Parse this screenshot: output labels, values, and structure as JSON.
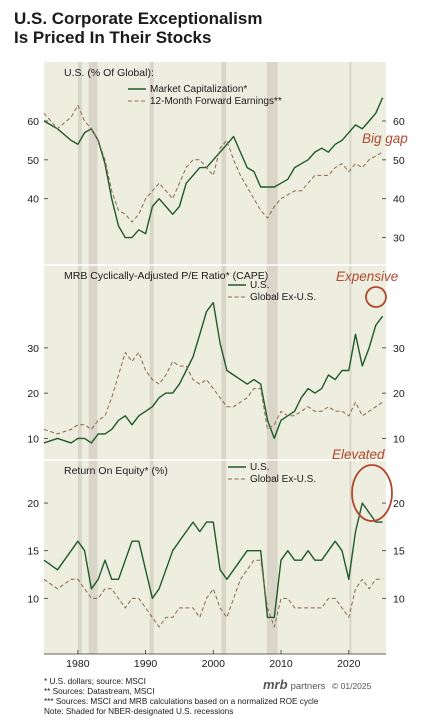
{
  "header": {
    "title_line1": "U.S. Corporate Exceptionalism",
    "title_line2": "Is Priced In Their Stocks"
  },
  "colors": {
    "background": "#eeeee0",
    "green": "#1f5a2a",
    "brown": "#8a6a4a",
    "recession": "#d9d5c9",
    "annotation": "#b0482e",
    "title": "#1a1a1a"
  },
  "x_axis": {
    "ticks": [
      "1980",
      "1990",
      "2000",
      "2010",
      "2020"
    ],
    "range": [
      1975,
      2025.5
    ]
  },
  "recessions": [
    [
      1980.0,
      1980.6
    ],
    [
      1981.6,
      1982.9
    ],
    [
      1990.6,
      1991.2
    ],
    [
      2001.2,
      2001.9
    ],
    [
      2007.9,
      2009.5
    ],
    [
      2020.1,
      2020.4
    ]
  ],
  "chart_data": [
    {
      "type": "line",
      "title": "U.S. (% Of Global):",
      "ylim_left": [
        25,
        69
      ],
      "ylim_right": [
        25,
        69
      ],
      "yticks_left": [
        40,
        50,
        60
      ],
      "yticks_right": [
        30,
        40,
        50,
        60
      ],
      "legend": [
        "Market Capitalization*",
        "12-Month Forward Earnings**"
      ],
      "annotation": "Big gap",
      "series": [
        {
          "name": "Market Capitalization*",
          "style": "solid",
          "x": [
            1975,
            1977,
            1979,
            1980,
            1981,
            1982,
            1983,
            1984,
            1985,
            1986,
            1987,
            1988,
            1989,
            1990,
            1991,
            1992,
            1993,
            1994,
            1995,
            1996,
            1997,
            1998,
            1999,
            2000,
            2001,
            2002,
            2003,
            2004,
            2005,
            2006,
            2007,
            2008,
            2009,
            2010,
            2011,
            2012,
            2013,
            2014,
            2015,
            2016,
            2017,
            2018,
            2019,
            2020,
            2021,
            2022,
            2023,
            2024,
            2025
          ],
          "values": [
            60,
            58,
            55,
            54,
            57,
            58,
            55,
            49,
            40,
            33,
            30,
            30,
            32,
            31,
            38,
            40,
            38,
            36,
            38,
            44,
            46,
            48,
            48,
            50,
            52,
            54,
            56,
            52,
            48,
            47,
            43,
            43,
            43,
            44,
            45,
            48,
            49,
            50,
            52,
            53,
            52,
            54,
            55,
            57,
            59,
            58,
            60,
            62,
            66
          ]
        },
        {
          "name": "12-Month Forward Earnings**",
          "style": "dashed",
          "x": [
            1975,
            1977,
            1979,
            1980,
            1981,
            1982,
            1983,
            1984,
            1985,
            1986,
            1987,
            1988,
            1989,
            1990,
            1991,
            1992,
            1993,
            1994,
            1995,
            1996,
            1997,
            1998,
            1999,
            2000,
            2001,
            2002,
            2003,
            2004,
            2005,
            2006,
            2007,
            2008,
            2009,
            2010,
            2011,
            2012,
            2013,
            2014,
            2015,
            2016,
            2017,
            2018,
            2019,
            2020,
            2021,
            2022,
            2023,
            2024,
            2025
          ],
          "values": [
            62,
            58,
            61,
            64,
            60,
            58,
            55,
            50,
            42,
            37,
            36,
            34,
            36,
            40,
            42,
            44,
            42,
            40,
            44,
            48,
            50,
            50,
            48,
            46,
            53,
            55,
            50,
            46,
            43,
            40,
            37,
            35,
            38,
            40,
            41,
            42,
            42,
            44,
            46,
            46,
            46,
            48,
            49,
            47,
            49,
            48,
            50,
            51,
            52
          ]
        }
      ]
    },
    {
      "type": "line",
      "title": "MRB Cyclically-Adjusted P/E Ratio* (CAPE)",
      "ylim_left": [
        7,
        43
      ],
      "ylim_right": [
        7,
        43
      ],
      "yticks_left": [
        10,
        20,
        30
      ],
      "yticks_right": [
        10,
        20,
        30
      ],
      "legend": [
        "U.S.",
        "Global Ex-U.S."
      ],
      "annotation": "Expensive",
      "series": [
        {
          "name": "U.S.",
          "style": "solid",
          "x": [
            1975,
            1977,
            1979,
            1980,
            1981,
            1982,
            1983,
            1984,
            1985,
            1986,
            1987,
            1988,
            1989,
            1990,
            1991,
            1992,
            1993,
            1994,
            1995,
            1996,
            1997,
            1998,
            1999,
            2000,
            2001,
            2002,
            2003,
            2004,
            2005,
            2006,
            2007,
            2008,
            2009,
            2010,
            2011,
            2012,
            2013,
            2014,
            2015,
            2016,
            2017,
            2018,
            2019,
            2020,
            2021,
            2022,
            2023,
            2024,
            2025
          ],
          "values": [
            9,
            10,
            9,
            10,
            10,
            9,
            11,
            11,
            12,
            14,
            15,
            13,
            15,
            16,
            17,
            19,
            20,
            20,
            22,
            25,
            28,
            33,
            38,
            40,
            31,
            25,
            24,
            23,
            22,
            23,
            22,
            14,
            10,
            14,
            15,
            16,
            19,
            21,
            20,
            21,
            24,
            23,
            25,
            25,
            33,
            26,
            30,
            35,
            37
          ]
        },
        {
          "name": "Global Ex-U.S.",
          "style": "dashed",
          "x": [
            1975,
            1977,
            1979,
            1980,
            1981,
            1982,
            1983,
            1984,
            1985,
            1986,
            1987,
            1988,
            1989,
            1990,
            1991,
            1992,
            1993,
            1994,
            1995,
            1996,
            1997,
            1998,
            1999,
            2000,
            2001,
            2002,
            2003,
            2004,
            2005,
            2006,
            2007,
            2008,
            2009,
            2010,
            2011,
            2012,
            2013,
            2014,
            2015,
            2016,
            2017,
            2018,
            2019,
            2020,
            2021,
            2022,
            2023,
            2024,
            2025
          ],
          "values": [
            12,
            11,
            12,
            13,
            13,
            12,
            14,
            15,
            19,
            24,
            29,
            27,
            29,
            25,
            23,
            22,
            24,
            27,
            26,
            26,
            23,
            22,
            23,
            21,
            19,
            17,
            17,
            18,
            19,
            21,
            21,
            12,
            13,
            16,
            15,
            15,
            16,
            17,
            16,
            16,
            17,
            16,
            16,
            15,
            18,
            15,
            16,
            17,
            18
          ]
        }
      ]
    },
    {
      "type": "line",
      "title": "Return On Equity* (%)",
      "ylim_left": [
        5,
        22
      ],
      "ylim_right": [
        5,
        22
      ],
      "yticks_left": [
        10,
        15,
        20
      ],
      "yticks_right": [
        10,
        15,
        20
      ],
      "legend": [
        "U.S.",
        "Global Ex-U.S."
      ],
      "annotation": "Elevated",
      "series": [
        {
          "name": "U.S.",
          "style": "solid",
          "x": [
            1975,
            1977,
            1979,
            1980,
            1981,
            1982,
            1983,
            1984,
            1985,
            1986,
            1987,
            1988,
            1989,
            1990,
            1991,
            1992,
            1993,
            1994,
            1995,
            1996,
            1997,
            1998,
            1999,
            2000,
            2001,
            2002,
            2003,
            2004,
            2005,
            2006,
            2007,
            2008,
            2009,
            2010,
            2011,
            2012,
            2013,
            2014,
            2015,
            2016,
            2017,
            2018,
            2019,
            2020,
            2021,
            2022,
            2023,
            2024,
            2025
          ],
          "values": [
            14,
            13,
            15,
            16,
            15,
            11,
            12,
            14,
            12,
            12,
            14,
            16,
            16,
            13,
            10,
            11,
            13,
            15,
            16,
            17,
            18,
            17,
            18,
            18,
            13,
            12,
            13,
            14,
            15,
            15,
            15,
            8,
            8,
            14,
            15,
            14,
            14,
            15,
            14,
            14,
            15,
            16,
            15,
            12,
            17,
            20,
            19,
            18,
            18
          ]
        },
        {
          "name": "Global Ex-U.S.",
          "style": "dashed",
          "x": [
            1975,
            1977,
            1979,
            1980,
            1981,
            1982,
            1983,
            1984,
            1985,
            1986,
            1987,
            1988,
            1989,
            1990,
            1991,
            1992,
            1993,
            1994,
            1995,
            1996,
            1997,
            1998,
            1999,
            2000,
            2001,
            2002,
            2003,
            2004,
            2005,
            2006,
            2007,
            2008,
            2009,
            2010,
            2011,
            2012,
            2013,
            2014,
            2015,
            2016,
            2017,
            2018,
            2019,
            2020,
            2021,
            2022,
            2023,
            2024,
            2025
          ],
          "values": [
            12,
            11,
            12,
            12,
            11,
            10,
            10,
            11,
            11,
            10,
            9,
            10,
            10,
            9,
            8,
            7,
            8,
            8,
            9,
            9,
            9,
            8,
            10,
            11,
            9,
            8,
            10,
            12,
            13,
            14,
            14,
            9,
            7,
            10,
            10,
            9,
            9,
            9,
            9,
            9,
            10,
            10,
            9,
            8,
            11,
            12,
            11,
            12,
            12
          ]
        }
      ]
    }
  ],
  "footer": {
    "notes": [
      "*   U.S. dollars; source: MSCI",
      "**  Sources: Datastream, MSCI",
      "*** Sources: MSCI and MRB calculations based on a normalized ROE cycle",
      "Note: Shaded for NBER-designated U.S. recessions"
    ],
    "brand": "mrb",
    "brand_suffix": "partners",
    "copyright": "© 01/2025"
  }
}
